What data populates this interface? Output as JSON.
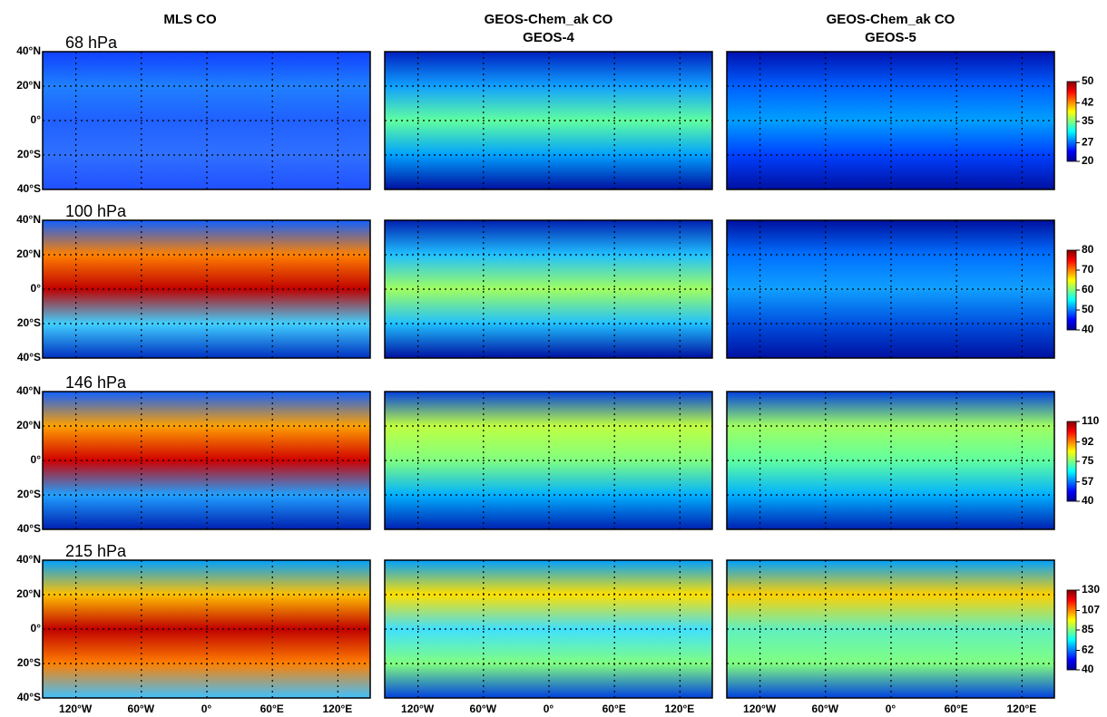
{
  "columns": [
    {
      "title": "MLS CO"
    },
    {
      "title": "GEOS-Chem_ak CO",
      "subtitle": "GEOS-4"
    },
    {
      "title": "GEOS-Chem_ak CO",
      "subtitle": "GEOS-5"
    }
  ],
  "rows": [
    {
      "label": "68 hPa",
      "colorbar": {
        "range": [
          20,
          50
        ],
        "ticks": [
          50,
          42,
          35,
          27,
          20
        ]
      }
    },
    {
      "label": "100 hPa",
      "colorbar": {
        "range": [
          40,
          80
        ],
        "ticks": [
          80,
          70,
          60,
          50,
          40
        ]
      }
    },
    {
      "label": "146 hPa",
      "colorbar": {
        "range": [
          40,
          110
        ],
        "ticks": [
          110,
          92,
          75,
          57,
          40
        ]
      }
    },
    {
      "label": "215 hPa",
      "colorbar": {
        "range": [
          40,
          130
        ],
        "ticks": [
          130,
          107,
          85,
          62,
          40
        ]
      }
    }
  ],
  "lat_labels": [
    "40°N",
    "20°N",
    "0°",
    "20°S",
    "40°S"
  ],
  "lon_labels": [
    "120°W",
    "60°W",
    "0°",
    "60°E",
    "120°E"
  ]
}
